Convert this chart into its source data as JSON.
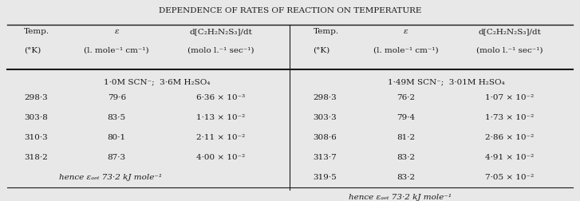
{
  "title": "DEPENDENCE OF RATES OF REACTION ON TEMPERATURE",
  "left_header_col1": "Temp.\n(°Κ)",
  "left_header_col2": "ε\n(l. mole⁻¹ cm⁻¹)",
  "left_header_col3": "d[C₂H₂N₂S₃]/dt\n(molo l.⁻¹ sec⁻¹)",
  "right_header_col1": "Temp.\n(°Κ)",
  "right_header_col2": "ε\n(l. mole⁻¹ cm⁻¹)",
  "right_header_col3": "d[C₂H₂N₂S₃]/dt\n(molo l.⁻¹ sec⁻¹)",
  "left_condition": "1·0Μ SCN⁻;  3·6Μ H₂SO₄",
  "right_condition": "1·49Μ SCN⁻;  3·01Μ H₂SO₄",
  "left_data": [
    [
      "298·3",
      "79·6",
      "6·36 × 10⁻³"
    ],
    [
      "303·8",
      "83·5",
      "1·13 × 10⁻²"
    ],
    [
      "310·3",
      "80·1",
      "2·11 × 10⁻²"
    ],
    [
      "318·2",
      "87·3",
      "4·00 × 10⁻²"
    ]
  ],
  "right_data": [
    [
      "298·3",
      "76·2",
      "1·07 × 10⁻²"
    ],
    [
      "303·3",
      "79·4",
      "1·73 × 10⁻²"
    ],
    [
      "308·6",
      "81·2",
      "2·86 × 10⁻²"
    ],
    [
      "313·7",
      "83·2",
      "4·91 × 10⁻²"
    ],
    [
      "319·5",
      "83·2",
      "7·05 × 10⁻²"
    ]
  ],
  "left_footer": "hence εₐₑₜ 73·2 kJ mole⁻¹",
  "right_footer": "hence εₐₑₜ 73·2 kJ mole⁻¹",
  "bg_color": "#e8e8e8",
  "text_color": "#1a1a1a",
  "font_size": 7.5,
  "title_font_size": 7.5
}
